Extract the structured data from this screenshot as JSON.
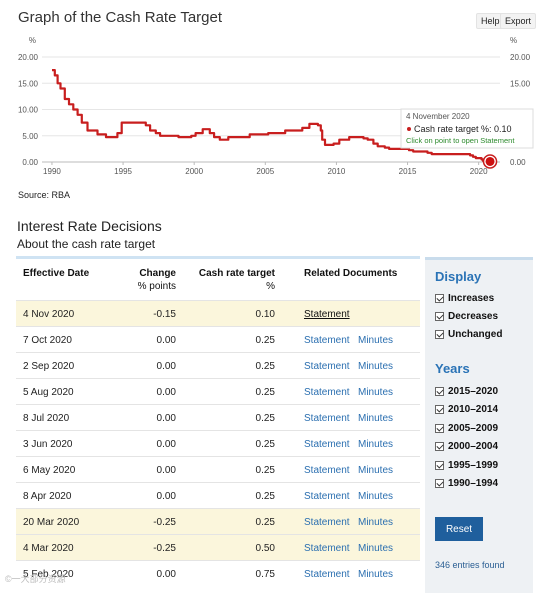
{
  "header": {
    "title": "Graph of the Cash Rate Target",
    "help": "Help",
    "export": "Export"
  },
  "source": "Source: RBA",
  "chart_data": {
    "type": "line",
    "ylabel_left": "%",
    "ylabel_right": "%",
    "yticks_left": [
      "20.00",
      "15.00",
      "10.00",
      "5.00",
      "0.00"
    ],
    "yticks_right": [
      "20.00",
      "15.00",
      "10.00",
      "5.00",
      "0.00"
    ],
    "xticks": [
      "1990",
      "1995",
      "2000",
      "2005",
      "2010",
      "2015",
      "2020"
    ],
    "ylim": [
      0,
      20
    ],
    "xlim": [
      1989.3,
      2021.5
    ],
    "series": [
      {
        "color": "#c81e1e",
        "points": [
          [
            1990.0,
            17.5
          ],
          [
            1990.2,
            16.5
          ],
          [
            1990.4,
            15.0
          ],
          [
            1990.6,
            14.0
          ],
          [
            1990.9,
            12.0
          ],
          [
            1991.2,
            11.0
          ],
          [
            1991.5,
            10.0
          ],
          [
            1991.8,
            9.0
          ],
          [
            1992.1,
            7.5
          ],
          [
            1992.5,
            6.0
          ],
          [
            1993.2,
            5.25
          ],
          [
            1993.8,
            4.75
          ],
          [
            1994.6,
            5.5
          ],
          [
            1994.9,
            7.5
          ],
          [
            1995.9,
            7.5
          ],
          [
            1996.6,
            7.0
          ],
          [
            1996.9,
            6.0
          ],
          [
            1997.3,
            5.5
          ],
          [
            1997.6,
            5.0
          ],
          [
            1998.9,
            4.75
          ],
          [
            1999.8,
            5.0
          ],
          [
            2000.1,
            5.5
          ],
          [
            2000.6,
            6.25
          ],
          [
            2001.1,
            5.5
          ],
          [
            2001.4,
            4.75
          ],
          [
            2001.8,
            4.25
          ],
          [
            2002.4,
            4.75
          ],
          [
            2003.9,
            5.25
          ],
          [
            2005.2,
            5.5
          ],
          [
            2006.4,
            6.0
          ],
          [
            2007.6,
            6.5
          ],
          [
            2008.1,
            7.25
          ],
          [
            2008.7,
            7.0
          ],
          [
            2008.9,
            6.0
          ],
          [
            2009.0,
            4.25
          ],
          [
            2009.2,
            3.25
          ],
          [
            2009.8,
            3.5
          ],
          [
            2010.2,
            4.25
          ],
          [
            2010.9,
            4.75
          ],
          [
            2011.9,
            4.5
          ],
          [
            2012.2,
            4.25
          ],
          [
            2012.6,
            3.5
          ],
          [
            2012.9,
            3.0
          ],
          [
            2013.4,
            2.75
          ],
          [
            2013.7,
            2.5
          ],
          [
            2015.1,
            2.25
          ],
          [
            2015.4,
            2.0
          ],
          [
            2016.4,
            1.75
          ],
          [
            2016.7,
            1.5
          ],
          [
            2019.4,
            1.25
          ],
          [
            2019.6,
            1.0
          ],
          [
            2019.8,
            0.75
          ],
          [
            2020.2,
            0.5
          ],
          [
            2020.3,
            0.25
          ],
          [
            2020.8,
            0.1
          ]
        ]
      }
    ],
    "highlight_point": [
      2020.8,
      0.1
    ],
    "tooltip": {
      "date": "4 November 2020",
      "label": "Cash rate target %: 0.10",
      "hint": "Click on point to open Statement"
    }
  },
  "section": {
    "title": "Interest Rate Decisions",
    "subtitle": "About the cash rate target"
  },
  "table": {
    "headers": {
      "date": "Effective Date",
      "change": "Change",
      "change_sub": "% points",
      "rate": "Cash rate target",
      "rate_sub": "%",
      "docs": "Related Documents"
    },
    "rows": [
      {
        "date": "4 Nov 2020",
        "change": "-0.15",
        "rate": "0.10",
        "doc1": "Statement",
        "doc2": "",
        "hl": true,
        "active": true
      },
      {
        "date": "7 Oct 2020",
        "change": "0.00",
        "rate": "0.25",
        "doc1": "Statement",
        "doc2": "Minutes",
        "hl": false
      },
      {
        "date": "2 Sep 2020",
        "change": "0.00",
        "rate": "0.25",
        "doc1": "Statement",
        "doc2": "Minutes",
        "hl": false
      },
      {
        "date": "5 Aug 2020",
        "change": "0.00",
        "rate": "0.25",
        "doc1": "Statement",
        "doc2": "Minutes",
        "hl": false
      },
      {
        "date": "8 Jul 2020",
        "change": "0.00",
        "rate": "0.25",
        "doc1": "Statement",
        "doc2": "Minutes",
        "hl": false
      },
      {
        "date": "3 Jun 2020",
        "change": "0.00",
        "rate": "0.25",
        "doc1": "Statement",
        "doc2": "Minutes",
        "hl": false
      },
      {
        "date": "6 May 2020",
        "change": "0.00",
        "rate": "0.25",
        "doc1": "Statement",
        "doc2": "Minutes",
        "hl": false
      },
      {
        "date": "8 Apr 2020",
        "change": "0.00",
        "rate": "0.25",
        "doc1": "Statement",
        "doc2": "Minutes",
        "hl": false
      },
      {
        "date": "20 Mar 2020",
        "change": "-0.25",
        "rate": "0.25",
        "doc1": "Statement",
        "doc2": "Minutes",
        "hl": true
      },
      {
        "date": "4 Mar 2020",
        "change": "-0.25",
        "rate": "0.50",
        "doc1": "Statement",
        "doc2": "Minutes",
        "hl": true
      },
      {
        "date": "5 Feb 2020",
        "change": "0.00",
        "rate": "0.75",
        "doc1": "Statement",
        "doc2": "Minutes",
        "hl": false
      }
    ]
  },
  "panel": {
    "display_title": "Display",
    "display": [
      "Increases",
      "Decreases",
      "Unchanged"
    ],
    "years_title": "Years",
    "years": [
      "2015–2020",
      "2010–2014",
      "2005–2009",
      "2000–2004",
      "1995–1999",
      "1990–1994"
    ],
    "reset": "Reset",
    "entries": "346 entries found"
  },
  "watermark": "©一大部分资源"
}
